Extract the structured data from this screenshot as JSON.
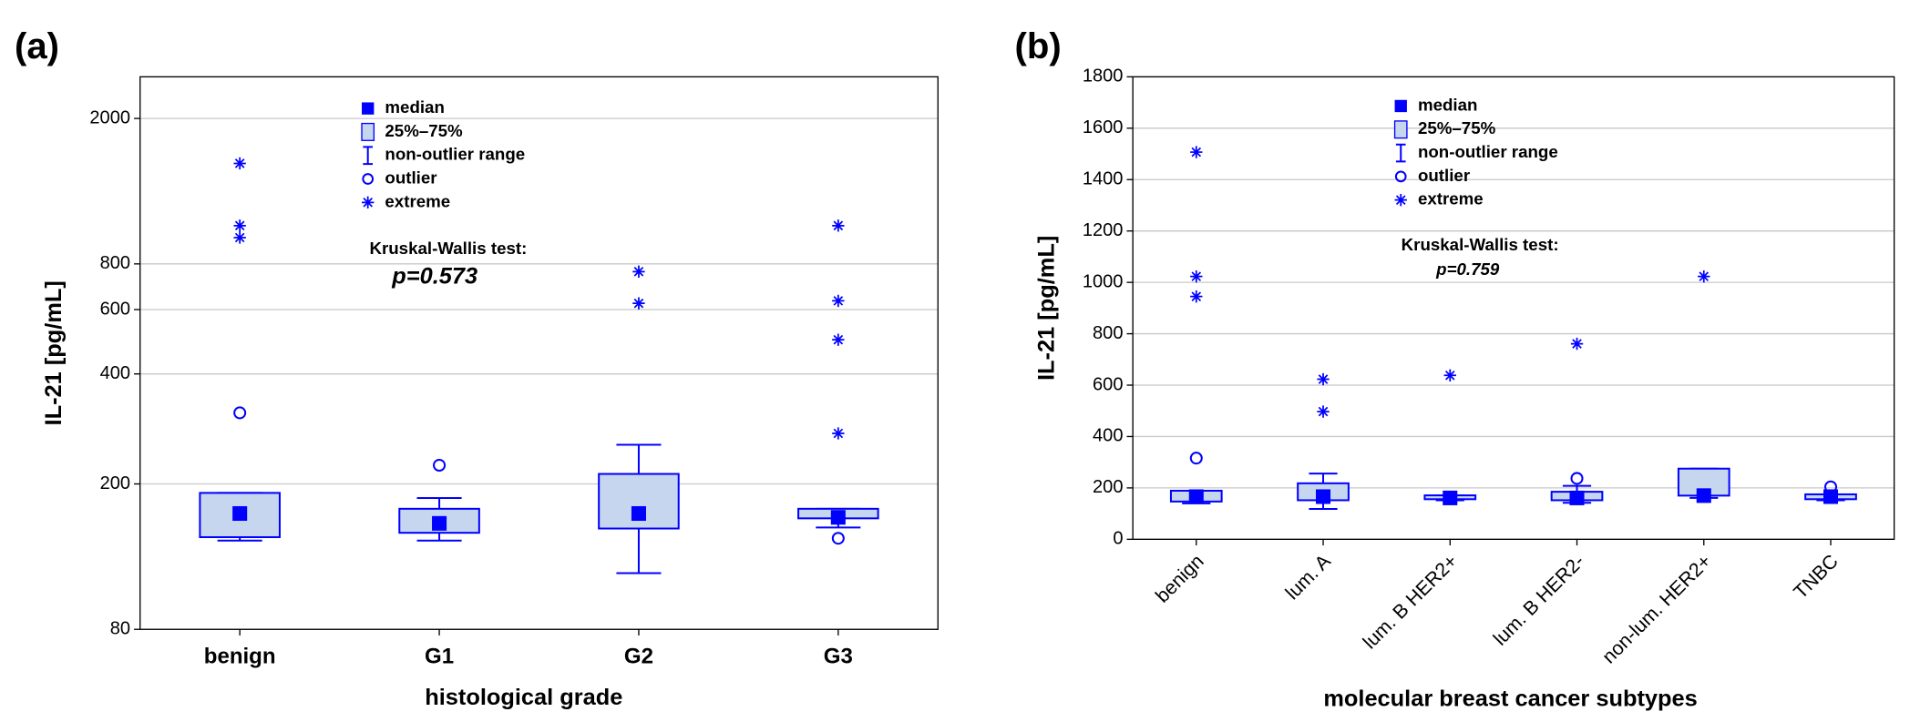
{
  "chart_data": [
    {
      "type": "box",
      "panel_label": "(a)",
      "x_label": "histological grade",
      "y_label": "IL-21 [pg/mL]",
      "log_scale": true,
      "ylim": [
        80,
        2600
      ],
      "yticks": [
        80,
        200,
        400,
        600,
        800,
        2000
      ],
      "grid": true,
      "color": "#0000ff",
      "box_fill": "#c6d6ef",
      "legend": [
        "median",
        "25%–75%",
        "non-outlier range",
        "outlier",
        "extreme"
      ],
      "annotation": "Kruskal-Wallis test:",
      "p_value": "p=0.573",
      "categories": [
        "benign",
        "G1",
        "G2",
        "G3"
      ],
      "median": [
        166,
        156,
        166,
        162
      ],
      "q1": [
        143,
        147,
        151,
        161
      ],
      "q3": [
        189,
        171,
        213,
        171
      ],
      "whisker_low": [
        140,
        140,
        114,
        152
      ],
      "whisker_high": [
        189,
        183,
        256,
        171
      ],
      "outliers": [
        [
          313
        ],
        [
          225
        ],
        [],
        [
          142
        ]
      ],
      "extremes": [
        [
          1507,
          1018,
          944
        ],
        [],
        [
          762,
          624
        ],
        [
          1018,
          634,
          496,
          275
        ]
      ]
    },
    {
      "type": "box",
      "panel_label": "(b)",
      "x_label": "molecular breast cancer subtypes",
      "y_label": "IL-21 [pg/mL]",
      "log_scale": false,
      "ylim": [
        0,
        1800
      ],
      "yticks": [
        0,
        200,
        400,
        600,
        800,
        1000,
        1200,
        1400,
        1600,
        1800
      ],
      "grid": true,
      "color": "#0000ff",
      "box_fill": "#c6d6ef",
      "legend": [
        "median",
        "25%–75%",
        "non-outlier range",
        "outlier",
        "extreme"
      ],
      "annotation": "Kruskal-Wallis test:",
      "p_value": "p=0.759",
      "categories": [
        "benign",
        "lum. A",
        "lum. B HER2+",
        "lum. B HER2-",
        "non-lum. HER2+",
        "TNBC"
      ],
      "median": [
        166,
        166,
        161,
        161,
        170,
        166
      ],
      "q1": [
        147,
        152,
        156,
        152,
        170,
        156
      ],
      "q3": [
        189,
        218,
        171,
        185,
        275,
        175
      ],
      "whisker_low": [
        140,
        118,
        152,
        142,
        161,
        152
      ],
      "whisker_high": [
        189,
        256,
        171,
        208,
        275,
        175
      ],
      "outliers": [
        [
          316
        ],
        [],
        [],
        [
          237
        ],
        [],
        [
          204
        ]
      ],
      "extremes": [
        [
          1507,
          1023,
          945
        ],
        [
          623,
          497
        ],
        [
          638
        ],
        [
          761
        ],
        [
          1023
        ],
        []
      ]
    }
  ]
}
